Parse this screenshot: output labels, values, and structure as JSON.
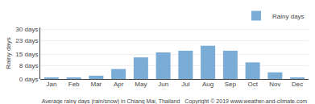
{
  "chart_data": {
    "type": "bar",
    "title": "Average rainy days (rain/snow) in Chiang Mai, Thailand   Copyright © 2019 www.weather-and-climate.com",
    "ylabel": "Rainy days",
    "categories": [
      "Jan",
      "Feb",
      "Mar",
      "Apr",
      "May",
      "Jun",
      "Jul",
      "Aug",
      "Sep",
      "Oct",
      "Nov",
      "Dec"
    ],
    "series": [
      {
        "name": "Rainy days",
        "color": "#7bacd6",
        "values": [
          1,
          1,
          2,
          6,
          13,
          16,
          17,
          20,
          17,
          10,
          4,
          1
        ]
      }
    ],
    "ylim": [
      0,
      31
    ],
    "yticks": [
      {
        "value": 0,
        "label": "0 days"
      },
      {
        "value": 8,
        "label": "8 days"
      },
      {
        "value": 15,
        "label": "15 days"
      },
      {
        "value": 23,
        "label": "23 days"
      },
      {
        "value": 30,
        "label": "30 days"
      }
    ],
    "grid": true,
    "legend": "upper right"
  }
}
